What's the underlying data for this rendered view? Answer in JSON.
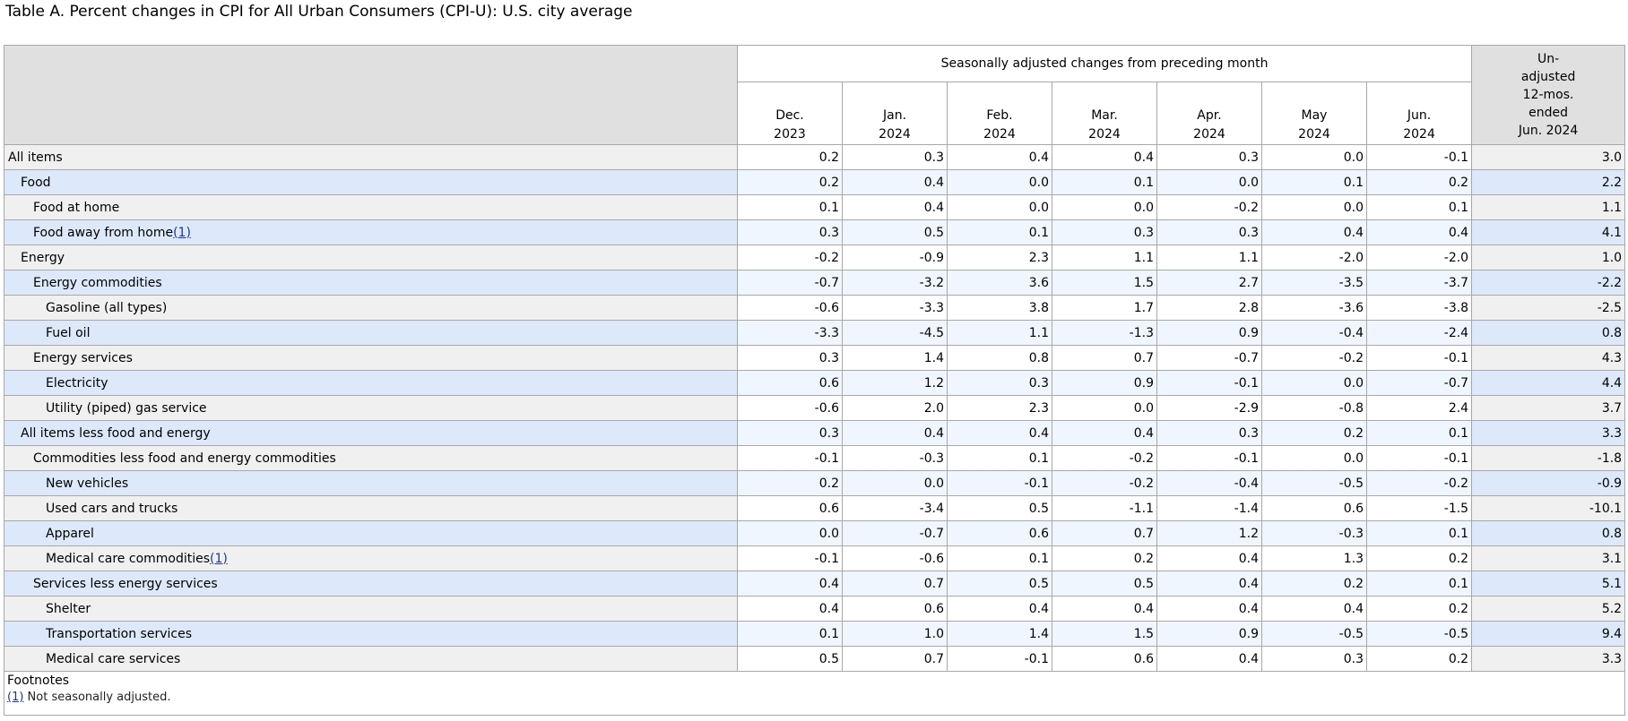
{
  "caption": "Table A. Percent changes in CPI for All Urban Consumers (CPI-U): U.S. city average",
  "header": {
    "group_label": "Seasonally adjusted changes from preceding month",
    "months": [
      {
        "line1": "Dec.",
        "line2": "2023"
      },
      {
        "line1": "Jan.",
        "line2": "2024"
      },
      {
        "line1": "Feb.",
        "line2": "2024"
      },
      {
        "line1": "Mar.",
        "line2": "2024"
      },
      {
        "line1": "Apr.",
        "line2": "2024"
      },
      {
        "line1": "May",
        "line2": "2024"
      },
      {
        "line1": "Jun.",
        "line2": "2024"
      }
    ],
    "unadjusted": [
      "Un-",
      "adjusted",
      "12-mos.",
      "ended",
      "Jun. 2024"
    ]
  },
  "rows": [
    {
      "label": "All items",
      "indent": 0,
      "footnote": "",
      "values": [
        "0.2",
        "0.3",
        "0.4",
        "0.4",
        "0.3",
        "0.0",
        "-0.1",
        "3.0"
      ]
    },
    {
      "label": "Food",
      "indent": 1,
      "footnote": "",
      "values": [
        "0.2",
        "0.4",
        "0.0",
        "0.1",
        "0.0",
        "0.1",
        "0.2",
        "2.2"
      ]
    },
    {
      "label": "Food at home",
      "indent": 2,
      "footnote": "",
      "values": [
        "0.1",
        "0.4",
        "0.0",
        "0.0",
        "-0.2",
        "0.0",
        "0.1",
        "1.1"
      ]
    },
    {
      "label": "Food away from home",
      "indent": 2,
      "footnote": "(1)",
      "values": [
        "0.3",
        "0.5",
        "0.1",
        "0.3",
        "0.3",
        "0.4",
        "0.4",
        "4.1"
      ]
    },
    {
      "label": "Energy",
      "indent": 1,
      "footnote": "",
      "values": [
        "-0.2",
        "-0.9",
        "2.3",
        "1.1",
        "1.1",
        "-2.0",
        "-2.0",
        "1.0"
      ]
    },
    {
      "label": "Energy commodities",
      "indent": 2,
      "footnote": "",
      "values": [
        "-0.7",
        "-3.2",
        "3.6",
        "1.5",
        "2.7",
        "-3.5",
        "-3.7",
        "-2.2"
      ]
    },
    {
      "label": "Gasoline (all types)",
      "indent": 3,
      "footnote": "",
      "values": [
        "-0.6",
        "-3.3",
        "3.8",
        "1.7",
        "2.8",
        "-3.6",
        "-3.8",
        "-2.5"
      ]
    },
    {
      "label": "Fuel oil",
      "indent": 3,
      "footnote": "",
      "values": [
        "-3.3",
        "-4.5",
        "1.1",
        "-1.3",
        "0.9",
        "-0.4",
        "-2.4",
        "0.8"
      ]
    },
    {
      "label": "Energy services",
      "indent": 2,
      "footnote": "",
      "values": [
        "0.3",
        "1.4",
        "0.8",
        "0.7",
        "-0.7",
        "-0.2",
        "-0.1",
        "4.3"
      ]
    },
    {
      "label": "Electricity",
      "indent": 3,
      "footnote": "",
      "values": [
        "0.6",
        "1.2",
        "0.3",
        "0.9",
        "-0.1",
        "0.0",
        "-0.7",
        "4.4"
      ]
    },
    {
      "label": "Utility (piped) gas service",
      "indent": 3,
      "footnote": "",
      "values": [
        "-0.6",
        "2.0",
        "2.3",
        "0.0",
        "-2.9",
        "-0.8",
        "2.4",
        "3.7"
      ]
    },
    {
      "label": "All items less food and energy",
      "indent": 1,
      "footnote": "",
      "values": [
        "0.3",
        "0.4",
        "0.4",
        "0.4",
        "0.3",
        "0.2",
        "0.1",
        "3.3"
      ]
    },
    {
      "label": "Commodities less food and energy commodities",
      "indent": 2,
      "footnote": "",
      "values": [
        "-0.1",
        "-0.3",
        "0.1",
        "-0.2",
        "-0.1",
        "0.0",
        "-0.1",
        "-1.8"
      ]
    },
    {
      "label": "New vehicles",
      "indent": 3,
      "footnote": "",
      "values": [
        "0.2",
        "0.0",
        "-0.1",
        "-0.2",
        "-0.4",
        "-0.5",
        "-0.2",
        "-0.9"
      ]
    },
    {
      "label": "Used cars and trucks",
      "indent": 3,
      "footnote": "",
      "values": [
        "0.6",
        "-3.4",
        "0.5",
        "-1.1",
        "-1.4",
        "0.6",
        "-1.5",
        "-10.1"
      ]
    },
    {
      "label": "Apparel",
      "indent": 3,
      "footnote": "",
      "values": [
        "0.0",
        "-0.7",
        "0.6",
        "0.7",
        "1.2",
        "-0.3",
        "0.1",
        "0.8"
      ]
    },
    {
      "label": "Medical care commodities",
      "indent": 3,
      "footnote": "(1)",
      "values": [
        "-0.1",
        "-0.6",
        "0.1",
        "0.2",
        "0.4",
        "1.3",
        "0.2",
        "3.1"
      ]
    },
    {
      "label": "Services less energy services",
      "indent": 2,
      "footnote": "",
      "values": [
        "0.4",
        "0.7",
        "0.5",
        "0.5",
        "0.4",
        "0.2",
        "0.1",
        "5.1"
      ]
    },
    {
      "label": "Shelter",
      "indent": 3,
      "footnote": "",
      "values": [
        "0.4",
        "0.6",
        "0.4",
        "0.4",
        "0.4",
        "0.4",
        "0.2",
        "5.2"
      ]
    },
    {
      "label": "Transportation services",
      "indent": 3,
      "footnote": "",
      "values": [
        "0.1",
        "1.0",
        "1.4",
        "1.5",
        "0.9",
        "-0.5",
        "-0.5",
        "9.4"
      ]
    },
    {
      "label": "Medical care services",
      "indent": 3,
      "footnote": "",
      "values": [
        "0.5",
        "0.7",
        "-0.1",
        "0.6",
        "0.4",
        "0.3",
        "0.2",
        "3.3"
      ]
    }
  ],
  "footnotes": {
    "title": "Footnotes",
    "items": [
      {
        "marker": "(1)",
        "text": " Not seasonally adjusted."
      }
    ]
  }
}
